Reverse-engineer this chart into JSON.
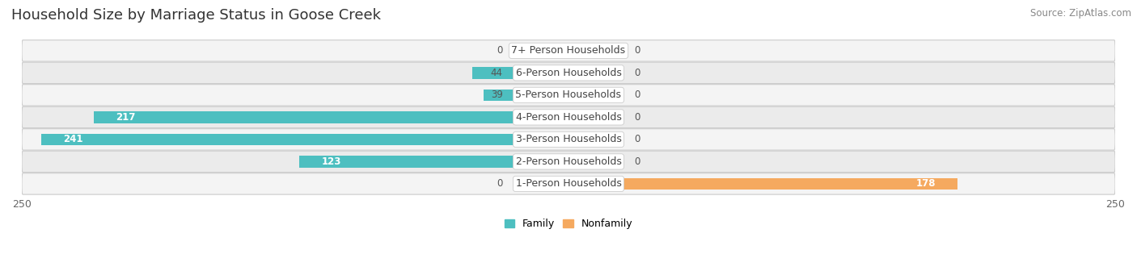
{
  "title": "Household Size by Marriage Status in Goose Creek",
  "source": "Source: ZipAtlas.com",
  "categories": [
    "7+ Person Households",
    "6-Person Households",
    "5-Person Households",
    "4-Person Households",
    "3-Person Households",
    "2-Person Households",
    "1-Person Households"
  ],
  "family_values": [
    0,
    44,
    39,
    217,
    241,
    123,
    0
  ],
  "nonfamily_values": [
    0,
    0,
    0,
    0,
    0,
    0,
    178
  ],
  "family_color": "#4DBFC0",
  "nonfamily_color": "#F5A95F",
  "nonfamily_light_color": "#F9D0A8",
  "family_light_color": "#A0DDE0",
  "row_colors": [
    "#F4F4F4",
    "#EBEBEB",
    "#F4F4F4",
    "#EBEBEB",
    "#F4F4F4",
    "#EBEBEB",
    "#F4F4F4"
  ],
  "xlim": 250,
  "bar_height": 0.52,
  "title_fontsize": 13,
  "label_fontsize": 9,
  "tick_fontsize": 9,
  "source_fontsize": 8.5,
  "value_fontsize": 8.5
}
